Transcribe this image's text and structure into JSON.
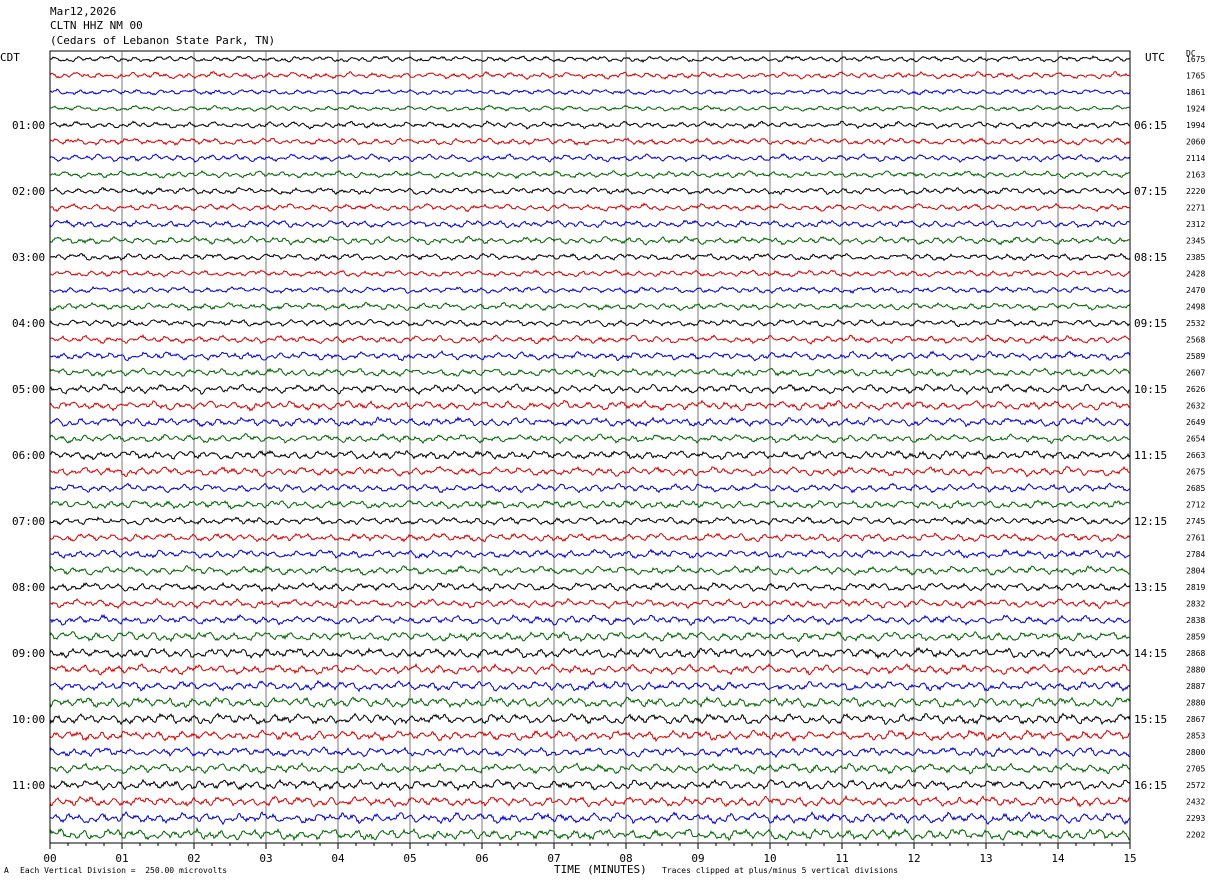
{
  "header": {
    "date": "Mar12,2026",
    "station": "CLTN HHZ NM 00",
    "location": "(Cedars of Lebanon State Park, TN)"
  },
  "timezones": {
    "left": "CDT",
    "right": "UTC",
    "right_column": "DC"
  },
  "footer": {
    "marker": "A",
    "scale": "Each Vertical Division =  250.00 microvolts",
    "clip": "Traces clipped at plus/minus 5 vertical divisions"
  },
  "colors": {
    "cycle": [
      "#000000",
      "#d40000",
      "#0000cc",
      "#006400"
    ],
    "grid": "#000000"
  },
  "chart_data": {
    "type": "line",
    "title": "",
    "xlabel": "TIME (MINUTES)",
    "xlim": [
      0,
      15
    ],
    "x_ticks": [
      "00",
      "01",
      "02",
      "03",
      "04",
      "05",
      "06",
      "07",
      "08",
      "09",
      "10",
      "11",
      "12",
      "13",
      "14",
      "15"
    ],
    "left_hour_labels": [
      "01:00",
      "02:00",
      "03:00",
      "04:00",
      "05:00",
      "06:00",
      "07:00",
      "08:00",
      "09:00",
      "10:00",
      "11:00"
    ],
    "right_hour_labels": [
      "06:15",
      "07:15",
      "08:15",
      "09:15",
      "10:15",
      "11:15",
      "12:15",
      "13:15",
      "14:15",
      "15:15",
      "16:15"
    ],
    "traces_per_hour": 4,
    "dc_offsets": [
      1675,
      1765,
      1861,
      1924,
      1994,
      2060,
      2114,
      2163,
      2220,
      2271,
      2312,
      2345,
      2385,
      2428,
      2470,
      2498,
      2532,
      2568,
      2589,
      2607,
      2626,
      2632,
      2649,
      2654,
      2663,
      2675,
      2685,
      2712,
      2745,
      2761,
      2784,
      2804,
      2819,
      2832,
      2838,
      2859,
      2868,
      2880,
      2887,
      2880,
      2867,
      2853,
      2800,
      2705,
      2572,
      2432,
      2293,
      2202
    ]
  }
}
